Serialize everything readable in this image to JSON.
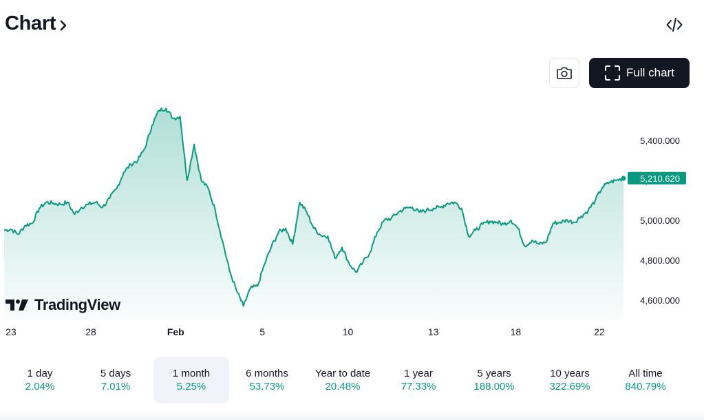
{
  "header": {
    "title": "Chart"
  },
  "toolbar": {
    "full_chart_label": "Full chart",
    "camera_icon": "camera-icon",
    "embed_icon": "code-embed-icon"
  },
  "brand": {
    "name": "TradingView"
  },
  "colors": {
    "line": "#089981",
    "last_price_bg": "#089981",
    "accent_text": "#089981",
    "dark_button": "#131722"
  },
  "chart_data": {
    "type": "area",
    "x_tick_labels": [
      "23",
      "28",
      "Feb",
      "5",
      "10",
      "13",
      "18",
      "22"
    ],
    "y_tick_labels": [
      "5,400.000",
      "5,200.000",
      "5,000.000",
      "4,800.000",
      "4,600.000"
    ],
    "y_ticks": [
      5400,
      5200,
      5000,
      4800,
      4600
    ],
    "ylim": [
      4500,
      5620
    ],
    "last_price_label": "5,210.620",
    "last_price": 5210.62,
    "series": [
      {
        "values": [
          4950,
          4955,
          4930,
          4975,
          4985,
          5060,
          5090,
          5085,
          5080,
          5090,
          5030,
          5065,
          5080,
          5090,
          5065,
          5110,
          5160,
          5240,
          5280,
          5300,
          5360,
          5475,
          5550,
          5560,
          5510,
          5520,
          5200,
          5380,
          5200,
          5160,
          5050,
          4900,
          4750,
          4650,
          4570,
          4660,
          4670,
          4780,
          4870,
          4940,
          4960,
          4880,
          5090,
          5040,
          4960,
          4925,
          4920,
          4810,
          4865,
          4785,
          4740,
          4790,
          4840,
          4940,
          5000,
          5010,
          5040,
          5060,
          5065,
          5040,
          5050,
          5060,
          5065,
          5085,
          5090,
          5060,
          4920,
          4950,
          4980,
          4995,
          4990,
          4980,
          5000,
          4960,
          4870,
          4900,
          4880,
          4890,
          4985,
          4990,
          5000,
          4990,
          5020,
          5050,
          5100,
          5165,
          5190,
          5200,
          5210
        ]
      }
    ]
  },
  "periods": [
    {
      "label": "1 day",
      "value": "2.04%"
    },
    {
      "label": "5 days",
      "value": "7.01%"
    },
    {
      "label": "1 month",
      "value": "5.25%",
      "active": true
    },
    {
      "label": "6 months",
      "value": "53.73%"
    },
    {
      "label": "Year to date",
      "value": "20.48%"
    },
    {
      "label": "1 year",
      "value": "77.33%"
    },
    {
      "label": "5 years",
      "value": "188.00%"
    },
    {
      "label": "10 years",
      "value": "322.69%"
    },
    {
      "label": "All time",
      "value": "840.79%"
    }
  ]
}
